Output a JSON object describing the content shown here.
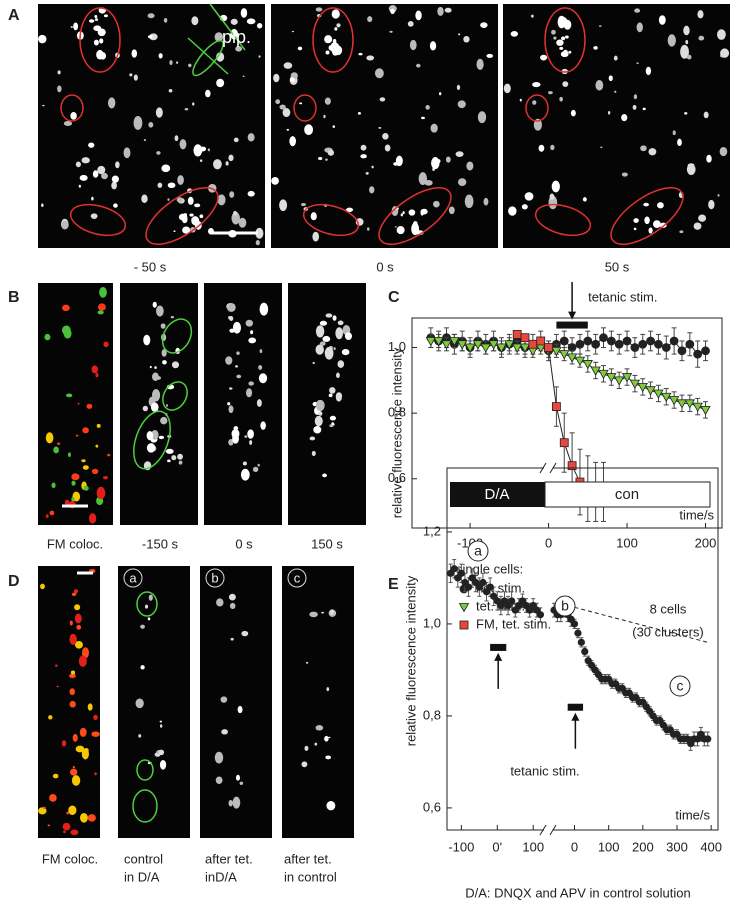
{
  "panels": {
    "A": {
      "label": "A",
      "captions": [
        "- 50 s",
        "0 s",
        "50 s"
      ],
      "pipette": "pip."
    },
    "B": {
      "label": "B",
      "captions": [
        "FM coloc.",
        "-150 s",
        "0 s",
        "150 s"
      ]
    },
    "C": {
      "label": "C"
    },
    "D": {
      "label": "D",
      "captions": [
        [
          "FM coloc."
        ],
        [
          "control",
          "in D/A"
        ],
        [
          "after tet.",
          "inD/A"
        ],
        [
          "after tet.",
          "in control"
        ]
      ],
      "markers": [
        "a",
        "b",
        "c"
      ]
    },
    "E": {
      "label": "E",
      "footnote": "D/A: DNQX and APV in control solution"
    }
  },
  "chart_data": [
    {
      "type": "line",
      "y_label": "relative fluorescence intensity",
      "x_label": "time/s",
      "xlim": [
        -174,
        221
      ],
      "xticks": [
        -100,
        0,
        100,
        200
      ],
      "ylim": [
        0.45,
        1.09
      ],
      "yticks": [
        0.6,
        0.8,
        {
          "value": 1,
          "label": "1.0"
        }
      ],
      "legend_title": "single cells:",
      "x": [
        -150,
        -140,
        -130,
        -120,
        -110,
        -100,
        -90,
        -80,
        -70,
        -60,
        -50,
        -40,
        -30,
        -20,
        -10,
        0,
        10,
        20,
        30,
        40,
        50,
        60,
        70,
        80,
        90,
        100,
        110,
        120,
        130,
        140,
        150,
        160,
        170,
        180,
        190,
        200
      ],
      "series": [
        {
          "name": "not stim.",
          "color": "#222222",
          "marker": "circle",
          "values": [
            1.03,
            1.02,
            1.03,
            1.01,
            1.02,
            1.0,
            1.02,
            1.01,
            1.02,
            1.0,
            1.01,
            1.02,
            1.0,
            1.01,
            1.02,
            0.99,
            1.01,
            1.02,
            1.0,
            1.01,
            1.02,
            1.01,
            1.03,
            1.02,
            1.01,
            1.02,
            1.0,
            1.01,
            1.02,
            1.01,
            1.0,
            1.02,
            0.99,
            1.01,
            0.98,
            0.99
          ],
          "errors": [
            0.03,
            0.03,
            0.03,
            0.03,
            0.03,
            0.03,
            0.03,
            0.03,
            0.03,
            0.03,
            0.03,
            0.03,
            0.03,
            0.03,
            0.03,
            0.03,
            0.03,
            0.03,
            0.03,
            0.03,
            0.03,
            0.03,
            0.03,
            0.03,
            0.03,
            0.03,
            0.03,
            0.03,
            0.03,
            0.03,
            0.035,
            0.04,
            0.03,
            0.035,
            0.04,
            0.03
          ]
        },
        {
          "name": "tet. stim.",
          "color": "#7dcc3c",
          "marker": "triangle",
          "values": [
            1.02,
            1.02,
            1.01,
            1.02,
            1.01,
            1.0,
            1.01,
            1.0,
            1.01,
            1.0,
            1.01,
            1.0,
            1.0,
            0.99,
            1.0,
            0.99,
            0.99,
            0.98,
            0.97,
            0.96,
            0.95,
            0.93,
            0.92,
            0.91,
            0.9,
            0.91,
            0.89,
            0.88,
            0.87,
            0.86,
            0.85,
            0.84,
            0.83,
            0.83,
            0.82,
            0.81
          ],
          "errors": [
            0.02,
            0.02,
            0.02,
            0.02,
            0.02,
            0.02,
            0.02,
            0.02,
            0.02,
            0.02,
            0.02,
            0.02,
            0.02,
            0.02,
            0.02,
            0.02,
            0.02,
            0.02,
            0.02,
            0.02,
            0.025,
            0.025,
            0.025,
            0.025,
            0.025,
            0.025,
            0.025,
            0.025,
            0.025,
            0.025,
            0.025,
            0.025,
            0.025,
            0.025,
            0.025,
            0.025
          ]
        },
        {
          "name": "FM, tet. stim.",
          "color": "#e8473f",
          "marker": "square",
          "x": [
            -40,
            -30,
            -20,
            -10,
            0,
            10,
            20,
            30,
            40,
            50,
            60,
            70
          ],
          "values": [
            1.04,
            1.03,
            1.01,
            1.02,
            1.0,
            0.82,
            0.71,
            0.64,
            0.59,
            0.57,
            0.56,
            0.56
          ],
          "errors": [
            0.01,
            0.01,
            0.01,
            0.01,
            0.02,
            0.06,
            0.09,
            0.1,
            0.1,
            0.1,
            0.09,
            0.09
          ]
        }
      ],
      "annotation": {
        "text": "tetanic stim.",
        "bar": [
          10,
          50
        ],
        "bar_y": 1.07
      }
    },
    {
      "type": "line",
      "y_label": "relative fluorescence intensity",
      "x_label": "time/s",
      "ylim": [
        0.552,
        1.339
      ],
      "yticks": [
        {
          "value": 0.6,
          "label": "0,6"
        },
        {
          "value": 0.8,
          "label": "0,8"
        },
        {
          "value": 1,
          "label": "1,0"
        },
        {
          "value": 1.2,
          "label": "1,2"
        }
      ],
      "segments": [
        {
          "xlim": [
            -140,
            130
          ],
          "xticks": [
            -100,
            {
              "value": 0,
              "label": "0'"
            },
            100
          ]
        },
        {
          "xlim": [
            -63,
            420
          ],
          "xticks": [
            0,
            100,
            200,
            300,
            400
          ]
        }
      ],
      "conditions": [
        "D/A",
        "con"
      ],
      "note": [
        "8 cells",
        "(30 clusters)"
      ],
      "markers": [
        "a",
        "b",
        "c"
      ],
      "series": [
        {
          "segment": 0,
          "color": "#222222",
          "x": [
            -130,
            -120,
            -110,
            -100,
            -90,
            -80,
            -70,
            -60,
            -50,
            -40,
            -30,
            -20,
            -10,
            0,
            10,
            20,
            30,
            40,
            50,
            60,
            70,
            80,
            90,
            100,
            110,
            120
          ],
          "values": [
            1.11,
            1.12,
            1.1,
            1.11,
            1.09,
            1.08,
            1.1,
            1.09,
            1.08,
            1.09,
            1.07,
            1.08,
            1.06,
            1.05,
            1.04,
            1.05,
            1.04,
            1.05,
            1.03,
            1.04,
            1.05,
            1.04,
            1.03,
            1.04,
            1.03,
            1.02
          ],
          "errors": [
            0.02,
            0.02,
            0.02,
            0.02,
            0.02,
            0.02,
            0.02,
            0.02,
            0.02,
            0.02,
            0.02,
            0.02,
            0.02,
            0.02,
            0.02,
            0.02,
            0.02,
            0.02,
            0.015,
            0.015,
            0.015,
            0.015,
            0.015,
            0.015,
            0.015,
            0.015
          ]
        },
        {
          "segment": 1,
          "color": "#222222",
          "x": [
            -60,
            -50,
            -40,
            -30,
            -20,
            -10,
            0,
            10,
            20,
            30,
            40,
            50,
            60,
            70,
            80,
            90,
            100,
            110,
            120,
            130,
            140,
            150,
            160,
            170,
            180,
            190,
            200,
            210,
            220,
            230,
            240,
            250,
            260,
            270,
            280,
            290,
            300,
            310,
            320,
            330,
            340,
            350,
            360,
            370,
            380,
            390
          ],
          "values": [
            1.03,
            1.02,
            1.02,
            1.03,
            1.02,
            1.01,
            1.0,
            0.98,
            0.96,
            0.94,
            0.92,
            0.91,
            0.9,
            0.89,
            0.88,
            0.88,
            0.88,
            0.87,
            0.87,
            0.86,
            0.86,
            0.85,
            0.85,
            0.84,
            0.84,
            0.83,
            0.83,
            0.82,
            0.81,
            0.8,
            0.79,
            0.79,
            0.78,
            0.77,
            0.77,
            0.76,
            0.76,
            0.75,
            0.75,
            0.75,
            0.74,
            0.75,
            0.75,
            0.76,
            0.75,
            0.75
          ],
          "errors": [
            0.015,
            0.015,
            0.015,
            0.015,
            0.015,
            0.015,
            0.01,
            0.01,
            0.01,
            0.01,
            0.01,
            0.01,
            0.01,
            0.01,
            0.01,
            0.01,
            0.01,
            0.01,
            0.01,
            0.01,
            0.01,
            0.01,
            0.01,
            0.01,
            0.01,
            0.01,
            0.01,
            0.01,
            0.01,
            0.01,
            0.01,
            0.01,
            0.01,
            0.01,
            0.01,
            0.01,
            0.01,
            0.01,
            0.01,
            0.01,
            0.015,
            0.015,
            0.015,
            0.015,
            0.015,
            0.015
          ]
        }
      ],
      "trend": {
        "segment": 1,
        "x": [
          -20,
          390
        ],
        "y": [
          1.04,
          0.96
        ]
      },
      "stim_label": "tetanic stim.",
      "stim_bars": [
        {
          "segment": 0,
          "x": [
            -20,
            25
          ],
          "y": 0.95
        },
        {
          "segment": 1,
          "x": [
            -20,
            25
          ],
          "y": 0.82
        }
      ]
    }
  ]
}
